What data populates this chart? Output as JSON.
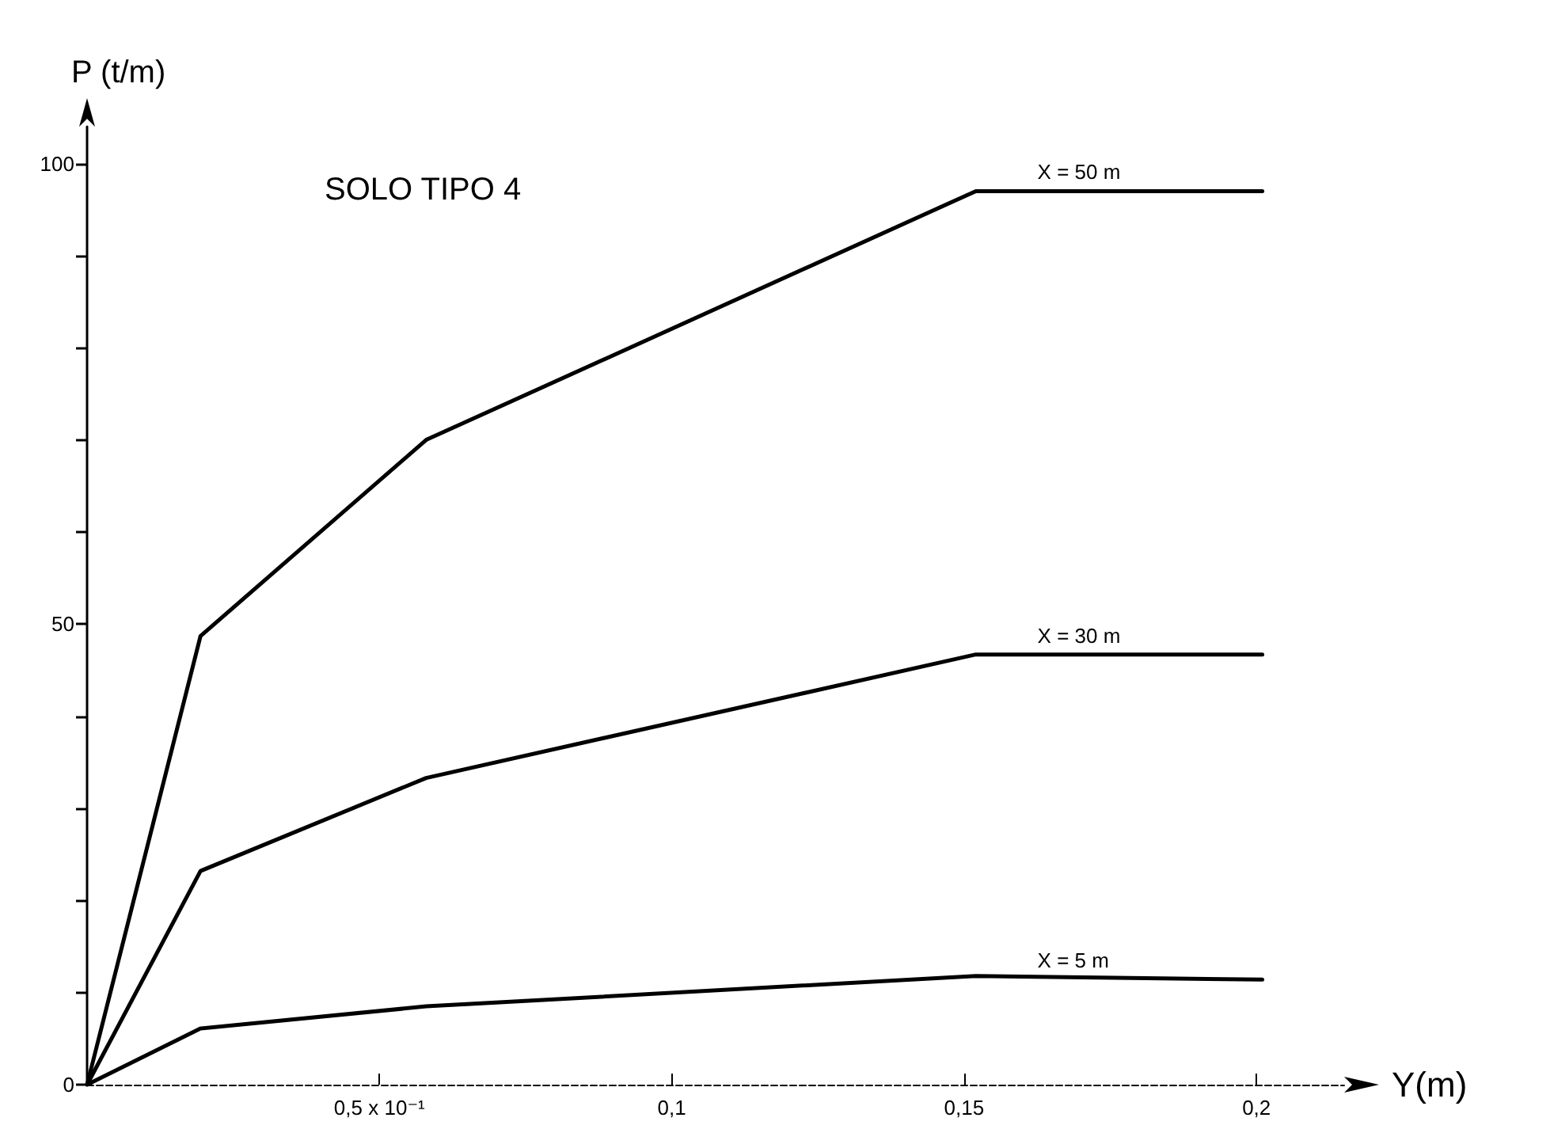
{
  "chart_data": {
    "type": "line",
    "title": "SOLO TIPO 4",
    "xlabel": "Y(m)",
    "ylabel": "P (t/m)",
    "x": [
      0,
      0.0194,
      0.058,
      0.152,
      0.201
    ],
    "series": [
      {
        "name": "X = 50 m",
        "color": "#000000",
        "values": [
          0,
          48.7,
          70,
          97,
          97
        ]
      },
      {
        "name": "X = 30 m",
        "color": "#000000",
        "values": [
          0,
          23.2,
          33.3,
          46.7,
          46.7
        ]
      },
      {
        "name": "X = 5 m",
        "color": "#000000",
        "values": [
          0,
          6.1,
          8.5,
          11.8,
          11.4
        ]
      }
    ],
    "xlim": [
      0,
      0.215
    ],
    "ylim": [
      0,
      104
    ],
    "xticks": [
      {
        "value": 0.05,
        "label": "0,5 x 10⁻¹"
      },
      {
        "value": 0.1,
        "label": "0,1"
      },
      {
        "value": 0.15,
        "label": "0,15"
      },
      {
        "value": 0.2,
        "label": "0,2"
      }
    ],
    "yticks": [
      0,
      {
        "value": 10,
        "label": null
      },
      {
        "value": 20,
        "label": null
      },
      {
        "value": 30,
        "label": null
      },
      {
        "value": 40,
        "label": null
      },
      50,
      {
        "value": 60,
        "label": null
      },
      {
        "value": 70,
        "label": null
      },
      {
        "value": 80,
        "label": null
      },
      {
        "value": 90,
        "label": null
      },
      100
    ],
    "grid": false,
    "legend": false,
    "marker": "none",
    "line_style": "solid"
  }
}
